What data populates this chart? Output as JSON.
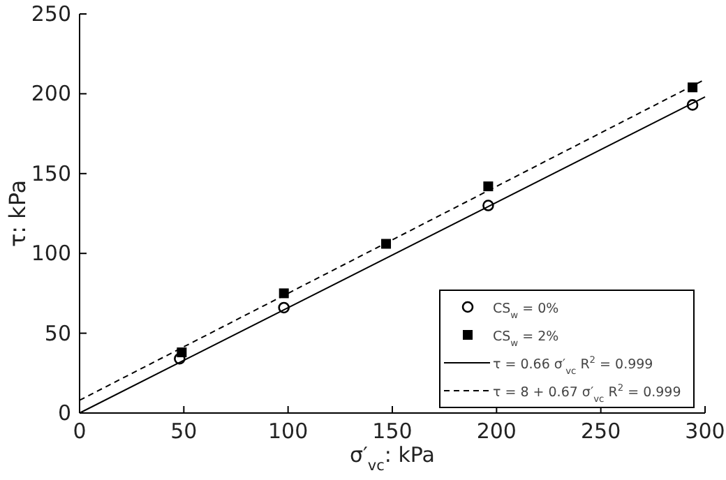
{
  "chart_data": {
    "type": "scatter",
    "xlabel": "σ′$_{vc}$: kPa",
    "ylabel": "τ: kPa",
    "xlim": [
      0,
      300
    ],
    "ylim": [
      0,
      250
    ],
    "xticks": [
      0,
      50,
      100,
      150,
      200,
      250,
      300
    ],
    "yticks": [
      0,
      50,
      100,
      150,
      200,
      250
    ],
    "grid": false,
    "legend": "bottom right",
    "series": [
      {
        "name": "CS$_{w}$ = 0%",
        "marker": "circle",
        "color": "#000000",
        "x": [
          48,
          98,
          196,
          294
        ],
        "values": [
          34,
          66,
          130,
          193
        ]
      },
      {
        "name": "CS$_{w}$ = 2%",
        "marker": "square",
        "color": "#000000",
        "x": [
          49,
          98,
          147,
          196,
          294
        ],
        "values": [
          38,
          75,
          106,
          142,
          204
        ]
      },
      {
        "name": "τ = 0.66 σ′$_{vc}$  R$^{2}$ = 0.999",
        "type": "line",
        "line_style": "solid",
        "marker": "none",
        "color": "#000000",
        "x": [
          0,
          300
        ],
        "values": [
          0,
          198
        ]
      },
      {
        "name": "τ = 8 + 0.67 σ′$_{vc}$  R$^{2}$ = 0.999",
        "type": "line",
        "line_style": "dashed",
        "marker": "none",
        "color": "#000000",
        "x": [
          0,
          300
        ],
        "values": [
          8,
          209
        ]
      }
    ]
  }
}
